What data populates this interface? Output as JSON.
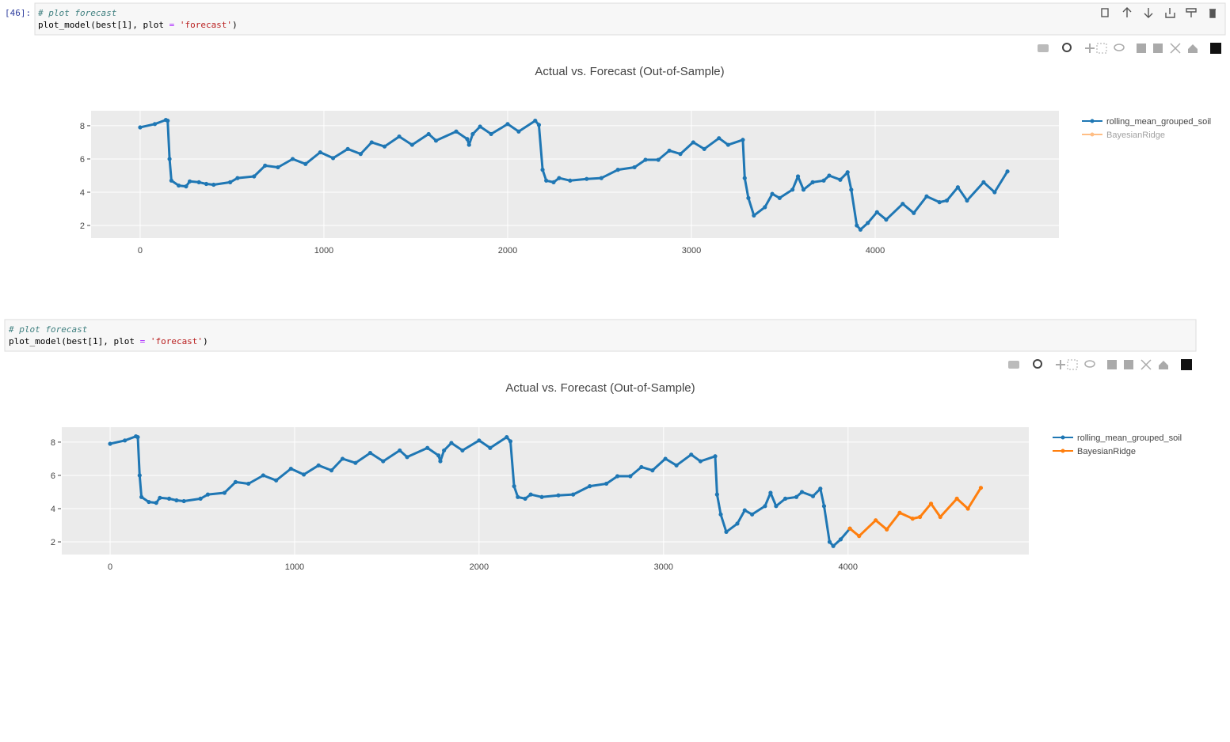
{
  "cells": [
    {
      "prompt": "[46]:",
      "comment": "# plot forecast",
      "code": [
        "plot_model(best[1], plot ",
        "= ",
        "'forecast'",
        ")"
      ]
    },
    {
      "comment": "# plot forecast",
      "code": [
        "plot_model(best[1], plot ",
        "= ",
        "'forecast'",
        ")"
      ]
    }
  ],
  "chart_data": [
    {
      "type": "line",
      "title": "Actual vs. Forecast (Out-of-Sample)",
      "series": [
        {
          "name": "rolling_mean_grouped_soil",
          "color": "#1f77b4",
          "x": [
            0,
            80,
            140,
            150,
            160,
            170,
            210,
            250,
            270,
            320,
            360,
            400,
            490,
            530,
            620,
            680,
            750,
            830,
            900,
            980,
            1050,
            1130,
            1200,
            1260,
            1330,
            1410,
            1480,
            1570,
            1610,
            1720,
            1780,
            1790,
            1810,
            1850,
            1910,
            2000,
            2060,
            2150,
            2170,
            2190,
            2210,
            2250,
            2280,
            2340,
            2430,
            2510,
            2600,
            2690,
            2750,
            2820,
            2880,
            2940,
            3010,
            3070,
            3150,
            3200,
            3280,
            3290,
            3310,
            3340,
            3400,
            3440,
            3480,
            3550,
            3580,
            3610,
            3660,
            3720,
            3750,
            3810,
            3850,
            3870,
            3900,
            3920,
            3960,
            4010,
            4060,
            4150,
            4210,
            4280,
            4350,
            4390,
            4450,
            4500,
            4590,
            4650,
            4720
          ],
          "values": [
            7.9,
            8.1,
            8.35,
            8.3,
            6.0,
            4.7,
            4.4,
            4.35,
            4.65,
            4.6,
            4.5,
            4.45,
            4.6,
            4.85,
            4.95,
            5.6,
            5.5,
            6.0,
            5.7,
            6.4,
            6.05,
            6.6,
            6.3,
            7.0,
            6.75,
            7.35,
            6.85,
            7.5,
            7.1,
            7.65,
            7.2,
            6.85,
            7.5,
            7.95,
            7.5,
            8.1,
            7.65,
            8.3,
            8.05,
            5.35,
            4.7,
            4.6,
            4.85,
            4.7,
            4.8,
            4.85,
            5.35,
            5.5,
            5.95,
            5.95,
            6.5,
            6.3,
            7.0,
            6.6,
            7.25,
            6.85,
            7.15,
            4.85,
            3.65,
            2.6,
            3.1,
            3.9,
            3.65,
            4.15,
            4.95,
            4.15,
            4.6,
            4.7,
            5.0,
            4.75,
            5.2,
            4.15,
            2.0,
            1.75,
            2.15,
            2.8,
            2.35,
            3.3,
            2.75,
            3.75,
            3.4,
            3.5,
            4.3,
            3.5,
            4.6,
            4.0,
            5.25
          ]
        },
        {
          "name": "BayesianRidge",
          "color": "#ff7f0e",
          "visible": "legendonly"
        }
      ],
      "xlim": [
        -267,
        5000
      ],
      "ylim": [
        1.24,
        8.9
      ],
      "xticks": [
        0,
        1000,
        2000,
        3000,
        4000
      ],
      "yticks": [
        2,
        4,
        6,
        8
      ],
      "grid": true,
      "legend": "right"
    },
    {
      "type": "line",
      "title": "Actual vs. Forecast (Out-of-Sample)",
      "series": [
        {
          "name": "rolling_mean_grouped_soil",
          "color": "#1f77b4",
          "x": [
            0,
            80,
            140,
            150,
            160,
            170,
            210,
            250,
            270,
            320,
            360,
            400,
            490,
            530,
            620,
            680,
            750,
            830,
            900,
            980,
            1050,
            1130,
            1200,
            1260,
            1330,
            1410,
            1480,
            1570,
            1610,
            1720,
            1780,
            1790,
            1810,
            1850,
            1910,
            2000,
            2060,
            2150,
            2170,
            2190,
            2210,
            2250,
            2280,
            2340,
            2430,
            2510,
            2600,
            2690,
            2750,
            2820,
            2880,
            2940,
            3010,
            3070,
            3150,
            3200,
            3280,
            3290,
            3310,
            3340,
            3400,
            3440,
            3480,
            3550,
            3580,
            3610,
            3660,
            3720,
            3750,
            3810,
            3850,
            3870,
            3900,
            3920,
            3960,
            4010
          ],
          "values": [
            7.9,
            8.1,
            8.35,
            8.3,
            6.0,
            4.7,
            4.4,
            4.35,
            4.65,
            4.6,
            4.5,
            4.45,
            4.6,
            4.85,
            4.95,
            5.6,
            5.5,
            6.0,
            5.7,
            6.4,
            6.05,
            6.6,
            6.3,
            7.0,
            6.75,
            7.35,
            6.85,
            7.5,
            7.1,
            7.65,
            7.2,
            6.85,
            7.5,
            7.95,
            7.5,
            8.1,
            7.65,
            8.3,
            8.05,
            5.35,
            4.7,
            4.6,
            4.85,
            4.7,
            4.8,
            4.85,
            5.35,
            5.5,
            5.95,
            5.95,
            6.5,
            6.3,
            7.0,
            6.6,
            7.25,
            6.85,
            7.15,
            4.85,
            3.65,
            2.6,
            3.1,
            3.9,
            3.65,
            4.15,
            4.95,
            4.15,
            4.6,
            4.7,
            5.0,
            4.75,
            5.2,
            4.15,
            2.0,
            1.75,
            2.15,
            2.8
          ]
        },
        {
          "name": "BayesianRidge",
          "color": "#ff7f0e",
          "x": [
            4010,
            4060,
            4150,
            4210,
            4280,
            4350,
            4390,
            4450,
            4500,
            4590,
            4650,
            4720
          ],
          "values": [
            2.8,
            2.35,
            3.3,
            2.75,
            3.75,
            3.4,
            3.5,
            4.3,
            3.5,
            4.6,
            4.0,
            5.25
          ]
        }
      ],
      "xlim": [
        -262,
        4980
      ],
      "ylim": [
        1.24,
        8.9
      ],
      "xticks": [
        0,
        1000,
        2000,
        3000,
        4000
      ],
      "yticks": [
        2,
        4,
        6,
        8
      ],
      "grid": true,
      "legend": "right"
    }
  ]
}
